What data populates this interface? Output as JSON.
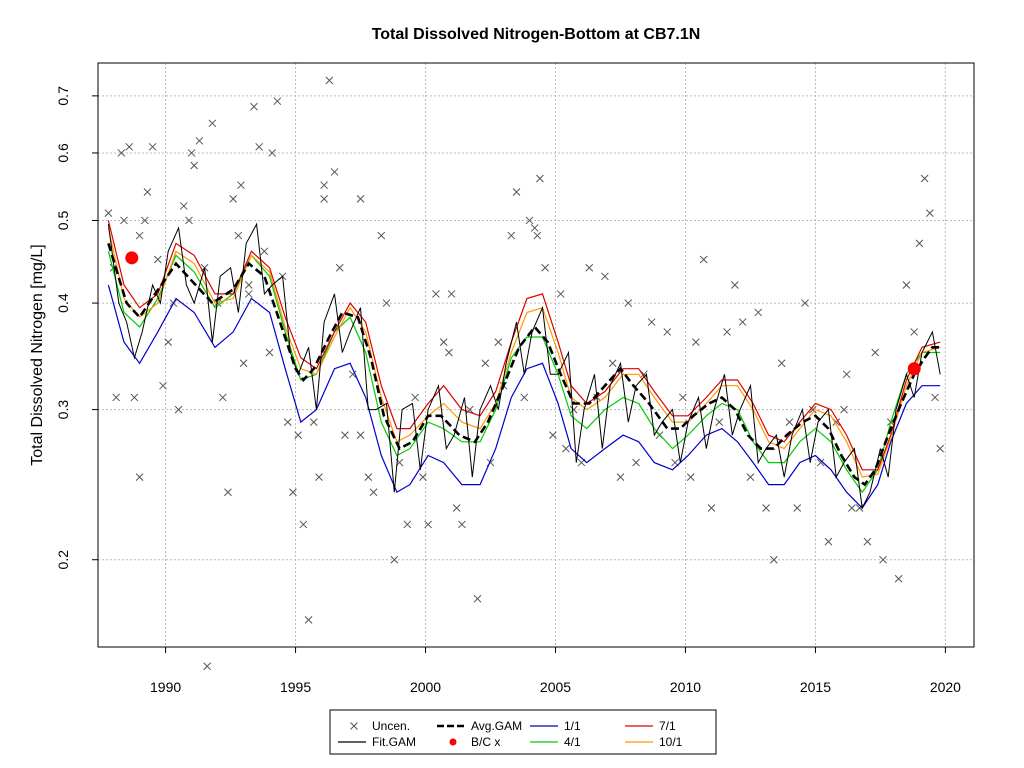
{
  "chart_data": {
    "type": "line",
    "title": "Total Dissolved Nitrogen-Bottom at CB7.1N",
    "xlabel": "",
    "ylabel": "Total Dissolved Nitrogen [mg/L]",
    "xlim": [
      1987.4,
      2021.1
    ],
    "ylim": [
      0.158,
      0.765
    ],
    "yscale": "log",
    "grid": true,
    "x_ticks": [
      1990,
      1995,
      2000,
      2005,
      2010,
      2015,
      2020
    ],
    "y_ticks": [
      0.2,
      0.3,
      0.4,
      0.5,
      0.6,
      0.7
    ],
    "legend": {
      "placement": "bottom-center",
      "entries": [
        {
          "label": "Uncen.",
          "symbol": "x",
          "color": "#555555"
        },
        {
          "label": "Fit.GAM",
          "symbol": "line",
          "color": "#000000"
        },
        {
          "label": "Avg.GAM",
          "symbol": "dashed",
          "color": "#000000"
        },
        {
          "label": "B/C x",
          "symbol": "dot",
          "color": "#ff0000"
        },
        {
          "label": "1/1",
          "symbol": "line",
          "color": "#0000cc"
        },
        {
          "label": "4/1",
          "symbol": "line",
          "color": "#00cc00"
        },
        {
          "label": "7/1",
          "symbol": "line",
          "color": "#dd0000"
        },
        {
          "label": "10/1",
          "symbol": "line",
          "color": "#ff9900"
        }
      ]
    },
    "bc_points": [
      {
        "x": 1988.7,
        "y": 0.452
      },
      {
        "x": 2018.8,
        "y": 0.335
      }
    ],
    "avg_gam": {
      "color": "#000000",
      "x": [
        1987.8,
        1988.5,
        1989.0,
        1989.6,
        1990.4,
        1991.0,
        1991.8,
        1992.6,
        1993.2,
        1993.8,
        1994.4,
        1995.0,
        1995.3,
        1995.7,
        1996.3,
        1996.8,
        1997.4,
        1997.9,
        1998.4,
        1999.0,
        1999.5,
        2000.1,
        2000.6,
        2001.3,
        2001.9,
        2002.4,
        2003.0,
        2003.6,
        2004.2,
        2004.7,
        2005.2,
        2005.7,
        2006.3,
        2006.9,
        2007.5,
        2008.0,
        2008.6,
        2009.3,
        2009.8,
        2010.3,
        2010.9,
        2011.4,
        2011.9,
        2012.4,
        2012.9,
        2013.4,
        2013.9,
        2014.5,
        2015.0,
        2015.5,
        2016.0,
        2016.5,
        2016.9,
        2017.3,
        2017.8,
        2018.3,
        2018.8,
        2019.2,
        2019.5,
        2019.9
      ],
      "values": [
        0.47,
        0.4,
        0.385,
        0.41,
        0.445,
        0.425,
        0.4,
        0.415,
        0.445,
        0.43,
        0.38,
        0.335,
        0.325,
        0.335,
        0.365,
        0.39,
        0.385,
        0.345,
        0.295,
        0.27,
        0.275,
        0.295,
        0.295,
        0.28,
        0.275,
        0.29,
        0.32,
        0.355,
        0.375,
        0.36,
        0.33,
        0.305,
        0.305,
        0.32,
        0.335,
        0.32,
        0.305,
        0.285,
        0.285,
        0.295,
        0.305,
        0.31,
        0.3,
        0.28,
        0.27,
        0.27,
        0.28,
        0.29,
        0.295,
        0.285,
        0.265,
        0.25,
        0.245,
        0.255,
        0.28,
        0.305,
        0.33,
        0.345,
        0.355,
        0.355
      ]
    },
    "fit_gam": {
      "color": "#000000",
      "x": [
        1987.8,
        1988.2,
        1988.5,
        1988.8,
        1989.1,
        1989.5,
        1989.8,
        1990.1,
        1990.5,
        1990.8,
        1991.1,
        1991.5,
        1991.8,
        1992.1,
        1992.5,
        1992.8,
        1993.1,
        1993.5,
        1993.8,
        1994.1,
        1994.5,
        1994.8,
        1995.1,
        1995.5,
        1995.8,
        1996.1,
        1996.5,
        1996.8,
        1997.1,
        1997.5,
        1997.8,
        1998.1,
        1998.5,
        1998.8,
        1999.1,
        1999.5,
        1999.8,
        2000.1,
        2000.5,
        2000.8,
        2001.1,
        2001.5,
        2001.8,
        2002.1,
        2002.5,
        2002.8,
        2003.1,
        2003.5,
        2003.8,
        2004.1,
        2004.5,
        2004.8,
        2005.1,
        2005.5,
        2005.8,
        2006.1,
        2006.5,
        2006.8,
        2007.1,
        2007.5,
        2007.8,
        2008.1,
        2008.5,
        2008.8,
        2009.1,
        2009.5,
        2009.8,
        2010.1,
        2010.5,
        2010.8,
        2011.1,
        2011.5,
        2011.8,
        2012.1,
        2012.5,
        2012.8,
        2013.1,
        2013.5,
        2013.8,
        2014.1,
        2014.5,
        2014.8,
        2015.1,
        2015.5,
        2015.8,
        2016.1,
        2016.5,
        2016.8,
        2017.1,
        2017.5,
        2017.8,
        2018.1,
        2018.5,
        2018.8,
        2019.1,
        2019.5,
        2019.8
      ],
      "values": [
        0.495,
        0.4,
        0.38,
        0.345,
        0.37,
        0.42,
        0.4,
        0.46,
        0.49,
        0.42,
        0.4,
        0.44,
        0.36,
        0.43,
        0.44,
        0.39,
        0.47,
        0.495,
        0.41,
        0.42,
        0.43,
        0.35,
        0.33,
        0.355,
        0.3,
        0.38,
        0.41,
        0.35,
        0.37,
        0.395,
        0.3,
        0.3,
        0.305,
        0.24,
        0.3,
        0.305,
        0.255,
        0.3,
        0.32,
        0.27,
        0.28,
        0.31,
        0.25,
        0.3,
        0.32,
        0.3,
        0.34,
        0.38,
        0.33,
        0.37,
        0.395,
        0.33,
        0.33,
        0.35,
        0.26,
        0.3,
        0.33,
        0.27,
        0.32,
        0.34,
        0.29,
        0.32,
        0.33,
        0.28,
        0.29,
        0.3,
        0.26,
        0.29,
        0.31,
        0.27,
        0.3,
        0.33,
        0.28,
        0.3,
        0.32,
        0.26,
        0.27,
        0.28,
        0.25,
        0.28,
        0.3,
        0.26,
        0.29,
        0.3,
        0.25,
        0.26,
        0.27,
        0.23,
        0.24,
        0.27,
        0.25,
        0.3,
        0.33,
        0.31,
        0.35,
        0.37,
        0.33
      ]
    },
    "series": [
      {
        "name": "1/1",
        "color": "#0000cc",
        "x": [
          1987.8,
          1988.4,
          1989.0,
          1989.7,
          1990.4,
          1991.1,
          1991.9,
          1992.6,
          1993.3,
          1994.0,
          1994.6,
          1995.2,
          1995.8,
          1996.5,
          1997.1,
          1997.7,
          1998.3,
          1998.9,
          1999.4,
          2000.1,
          2000.7,
          2001.4,
          2002.1,
          2002.7,
          2003.3,
          2003.9,
          2004.5,
          2005.1,
          2005.6,
          2006.2,
          2006.9,
          2007.6,
          2008.2,
          2008.8,
          2009.5,
          2010.1,
          2010.8,
          2011.4,
          2012.0,
          2012.6,
          2013.2,
          2013.8,
          2014.4,
          2015.0,
          2015.6,
          2016.2,
          2016.8,
          2017.4,
          2017.9,
          2018.5,
          2019.1,
          2019.8
        ],
        "values": [
          0.42,
          0.36,
          0.34,
          0.37,
          0.405,
          0.39,
          0.355,
          0.37,
          0.405,
          0.39,
          0.335,
          0.29,
          0.3,
          0.335,
          0.34,
          0.31,
          0.265,
          0.24,
          0.245,
          0.265,
          0.26,
          0.245,
          0.245,
          0.27,
          0.31,
          0.335,
          0.34,
          0.305,
          0.27,
          0.26,
          0.27,
          0.28,
          0.275,
          0.26,
          0.255,
          0.265,
          0.28,
          0.285,
          0.275,
          0.26,
          0.245,
          0.245,
          0.26,
          0.265,
          0.255,
          0.24,
          0.23,
          0.245,
          0.275,
          0.305,
          0.32,
          0.32
        ]
      },
      {
        "name": "4/1",
        "color": "#00cc00",
        "x": [
          1987.8,
          1988.4,
          1989.0,
          1989.7,
          1990.4,
          1991.1,
          1991.9,
          1992.6,
          1993.3,
          1994.0,
          1994.6,
          1995.2,
          1995.8,
          1996.5,
          1997.1,
          1997.7,
          1998.3,
          1998.9,
          1999.4,
          2000.1,
          2000.7,
          2001.4,
          2002.1,
          2002.7,
          2003.3,
          2003.9,
          2004.5,
          2005.1,
          2005.6,
          2006.2,
          2006.9,
          2007.6,
          2008.2,
          2008.8,
          2009.5,
          2010.1,
          2010.8,
          2011.4,
          2012.0,
          2012.6,
          2013.2,
          2013.8,
          2014.4,
          2015.0,
          2015.6,
          2016.2,
          2016.8,
          2017.4,
          2017.9,
          2018.5,
          2019.1,
          2019.8
        ],
        "values": [
          0.46,
          0.39,
          0.375,
          0.405,
          0.455,
          0.435,
          0.395,
          0.41,
          0.455,
          0.43,
          0.37,
          0.325,
          0.33,
          0.37,
          0.385,
          0.35,
          0.29,
          0.265,
          0.27,
          0.29,
          0.285,
          0.275,
          0.275,
          0.3,
          0.345,
          0.365,
          0.365,
          0.33,
          0.295,
          0.285,
          0.3,
          0.31,
          0.305,
          0.285,
          0.27,
          0.28,
          0.295,
          0.305,
          0.3,
          0.275,
          0.26,
          0.26,
          0.275,
          0.285,
          0.275,
          0.255,
          0.24,
          0.255,
          0.29,
          0.33,
          0.35,
          0.35
        ]
      },
      {
        "name": "7/1",
        "color": "#dd0000",
        "x": [
          1987.8,
          1988.4,
          1989.0,
          1989.7,
          1990.4,
          1991.1,
          1991.9,
          1992.6,
          1993.3,
          1994.0,
          1994.6,
          1995.2,
          1995.8,
          1996.5,
          1997.1,
          1997.7,
          1998.3,
          1998.9,
          1999.4,
          2000.1,
          2000.7,
          2001.4,
          2002.1,
          2002.7,
          2003.3,
          2003.9,
          2004.5,
          2005.1,
          2005.6,
          2006.2,
          2006.9,
          2007.6,
          2008.2,
          2008.8,
          2009.5,
          2010.1,
          2010.8,
          2011.4,
          2012.0,
          2012.6,
          2013.2,
          2013.8,
          2014.4,
          2015.0,
          2015.6,
          2016.2,
          2016.8,
          2017.4,
          2017.9,
          2018.5,
          2019.1,
          2019.8
        ],
        "values": [
          0.5,
          0.42,
          0.395,
          0.41,
          0.47,
          0.455,
          0.41,
          0.41,
          0.46,
          0.44,
          0.385,
          0.345,
          0.335,
          0.37,
          0.4,
          0.38,
          0.32,
          0.285,
          0.285,
          0.305,
          0.32,
          0.3,
          0.295,
          0.315,
          0.36,
          0.405,
          0.41,
          0.36,
          0.32,
          0.305,
          0.315,
          0.335,
          0.335,
          0.315,
          0.295,
          0.295,
          0.31,
          0.325,
          0.325,
          0.305,
          0.28,
          0.275,
          0.29,
          0.305,
          0.3,
          0.28,
          0.255,
          0.255,
          0.28,
          0.325,
          0.355,
          0.36
        ]
      },
      {
        "name": "10/1",
        "color": "#ff9900",
        "x": [
          1987.8,
          1988.4,
          1989.0,
          1989.7,
          1990.4,
          1991.1,
          1991.9,
          1992.6,
          1993.3,
          1994.0,
          1994.6,
          1995.2,
          1995.8,
          1996.5,
          1997.1,
          1997.7,
          1998.3,
          1998.9,
          1999.4,
          2000.1,
          2000.7,
          2001.4,
          2002.1,
          2002.7,
          2003.3,
          2003.9,
          2004.5,
          2005.1,
          2005.6,
          2006.2,
          2006.9,
          2007.6,
          2008.2,
          2008.8,
          2009.5,
          2010.1,
          2010.8,
          2011.4,
          2012.0,
          2012.6,
          2013.2,
          2013.8,
          2014.4,
          2015.0,
          2015.6,
          2016.2,
          2016.8,
          2017.4,
          2017.9,
          2018.5,
          2019.1,
          2019.8
        ],
        "values": [
          0.49,
          0.405,
          0.385,
          0.4,
          0.46,
          0.445,
          0.4,
          0.405,
          0.455,
          0.435,
          0.375,
          0.335,
          0.33,
          0.365,
          0.395,
          0.37,
          0.31,
          0.275,
          0.28,
          0.295,
          0.305,
          0.29,
          0.285,
          0.305,
          0.35,
          0.39,
          0.395,
          0.35,
          0.31,
          0.3,
          0.31,
          0.33,
          0.33,
          0.31,
          0.29,
          0.29,
          0.305,
          0.32,
          0.32,
          0.3,
          0.275,
          0.27,
          0.285,
          0.3,
          0.295,
          0.275,
          0.25,
          0.252,
          0.278,
          0.32,
          0.35,
          0.355
        ]
      }
    ],
    "observations": {
      "symbol": "x",
      "color": "#555555",
      "x": [
        1987.8,
        1988.0,
        1988.1,
        1988.3,
        1988.4,
        1988.6,
        1988.8,
        1989.0,
        1989.2,
        1989.3,
        1989.5,
        1989.7,
        1989.9,
        1990.1,
        1990.3,
        1990.5,
        1990.7,
        1990.9,
        1991.1,
        1991.3,
        1991.5,
        1991.6,
        1991.8,
        1992.0,
        1992.2,
        1992.4,
        1992.6,
        1992.8,
        1993.0,
        1993.2,
        1993.4,
        1993.6,
        1993.8,
        1994.0,
        1994.1,
        1994.3,
        1994.5,
        1994.7,
        1994.9,
        1995.1,
        1995.3,
        1995.5,
        1995.7,
        1995.9,
        1996.1,
        1996.3,
        1996.5,
        1996.7,
        1996.9,
        1997.2,
        1997.5,
        1997.8,
        1998.0,
        1998.3,
        1998.5,
        1998.8,
        1999.0,
        1999.3,
        1999.6,
        1999.9,
        2000.1,
        2000.4,
        2000.7,
        2000.9,
        2001.2,
        2001.4,
        2001.7,
        2002.0,
        2002.3,
        2002.5,
        2002.8,
        2003.0,
        2003.3,
        2003.5,
        2003.8,
        2004.0,
        2004.2,
        2004.4,
        2004.6,
        2004.9,
        2005.2,
        2005.4,
        2005.7,
        2006.0,
        2006.3,
        2006.6,
        2006.9,
        2007.2,
        2007.5,
        2007.8,
        2008.1,
        2008.4,
        2008.7,
        2009.0,
        2009.3,
        2009.6,
        2009.9,
        2010.2,
        2010.4,
        2010.7,
        2011.0,
        2011.3,
        2011.6,
        2011.9,
        2012.2,
        2012.5,
        2012.8,
        2013.1,
        2013.4,
        2013.7,
        2014.0,
        2014.3,
        2014.6,
        2014.9,
        2015.2,
        2015.5,
        2015.8,
        2016.1,
        2016.4,
        2016.7,
        2017.0,
        2017.3,
        2017.6,
        2017.9,
        2018.2,
        2018.5,
        2018.8,
        2019.0,
        2019.2,
        2019.4,
        2019.6,
        2019.8,
        1991.0,
        1992.9,
        1996.1,
        1989.0,
        1993.2,
        1997.5,
        2001.0,
        2004.3,
        2016.2
      ],
      "values": [
        0.51,
        0.44,
        0.31,
        0.6,
        0.5,
        0.61,
        0.31,
        0.25,
        0.5,
        0.54,
        0.61,
        0.45,
        0.32,
        0.36,
        0.4,
        0.3,
        0.52,
        0.5,
        0.58,
        0.62,
        0.44,
        0.15,
        0.65,
        0.4,
        0.31,
        0.24,
        0.53,
        0.48,
        0.34,
        0.42,
        0.68,
        0.61,
        0.46,
        0.35,
        0.6,
        0.69,
        0.43,
        0.29,
        0.24,
        0.28,
        0.22,
        0.17,
        0.29,
        0.25,
        0.53,
        0.73,
        0.57,
        0.44,
        0.28,
        0.33,
        0.53,
        0.25,
        0.24,
        0.48,
        0.4,
        0.2,
        0.26,
        0.22,
        0.31,
        0.25,
        0.22,
        0.41,
        0.36,
        0.35,
        0.23,
        0.22,
        0.3,
        0.18,
        0.34,
        0.26,
        0.36,
        0.32,
        0.48,
        0.54,
        0.31,
        0.5,
        0.49,
        0.56,
        0.44,
        0.28,
        0.41,
        0.27,
        0.3,
        0.26,
        0.44,
        0.31,
        0.43,
        0.34,
        0.25,
        0.4,
        0.26,
        0.33,
        0.38,
        0.28,
        0.37,
        0.26,
        0.31,
        0.25,
        0.36,
        0.45,
        0.23,
        0.29,
        0.37,
        0.42,
        0.38,
        0.25,
        0.39,
        0.23,
        0.2,
        0.34,
        0.29,
        0.23,
        0.4,
        0.3,
        0.26,
        0.21,
        0.29,
        0.3,
        0.23,
        0.23,
        0.21,
        0.35,
        0.2,
        0.29,
        0.19,
        0.42,
        0.37,
        0.47,
        0.56,
        0.51,
        0.31,
        0.27,
        0.6,
        0.55,
        0.55,
        0.48,
        0.41,
        0.28,
        0.41,
        0.48,
        0.33
      ]
    }
  }
}
